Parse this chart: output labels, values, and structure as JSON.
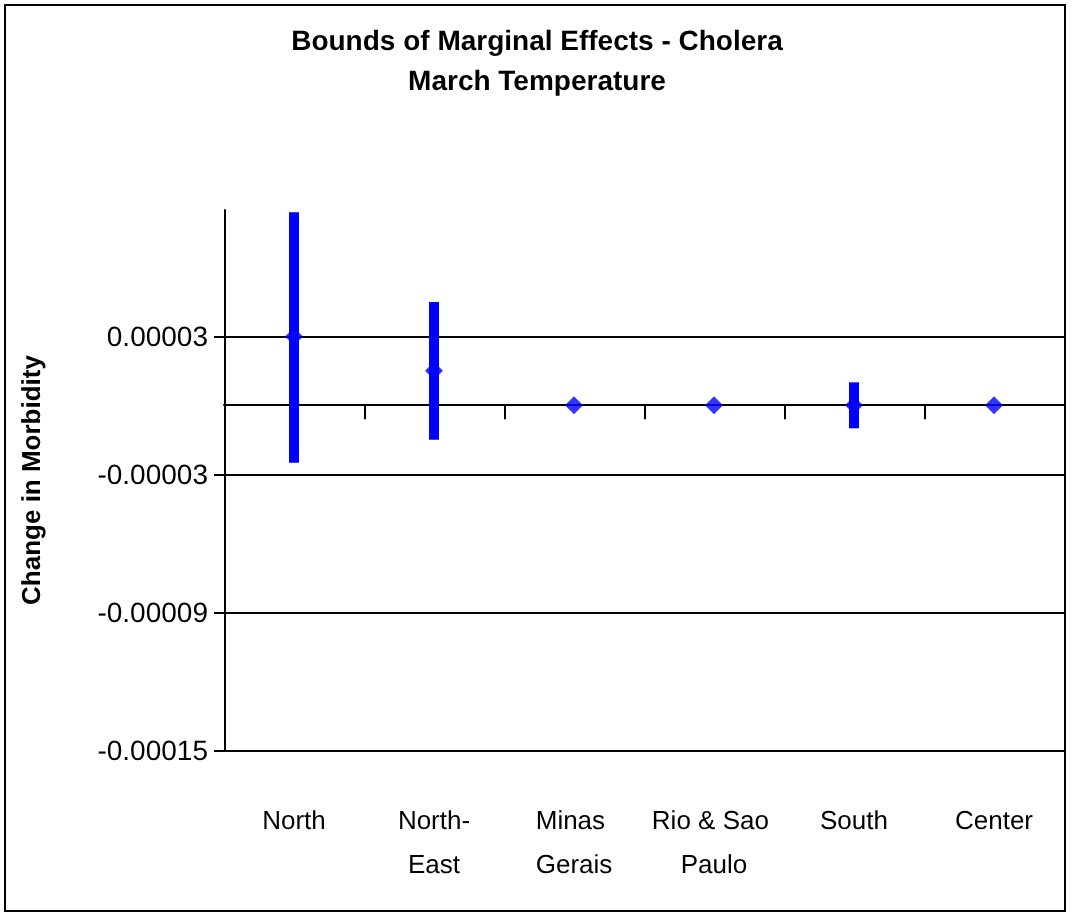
{
  "chart_data": {
    "type": "scatter",
    "title": "Bounds of Marginal Effects - Cholera",
    "subtitle": "March Temperature",
    "ylabel": "Change in Morbidity",
    "categories": [
      "North",
      "North-East",
      "Minas Gerais",
      "Rio & Sao Paulo",
      "South",
      "Center"
    ],
    "series": [
      {
        "color": "#0000ff",
        "values": [
          3e-05,
          1.5e-05,
          0,
          0,
          0,
          0
        ],
        "errors": [
          [
            5.5e-05,
            5.4e-05
          ],
          [
            3e-05,
            3e-05
          ],
          null,
          null,
          [
            1e-05,
            1e-05
          ],
          null
        ]
      }
    ],
    "ylim": [
      -0.00015,
      8.5e-05
    ],
    "yticks": [
      {
        "value": -0.00015,
        "label": "-0.00015"
      },
      {
        "value": -9e-05,
        "label": "-0.00009"
      },
      {
        "value": -3e-05,
        "label": "-0.00003"
      },
      {
        "value": 3e-05,
        "label": "0.00003"
      }
    ],
    "grid": "y",
    "marker": "diamond"
  }
}
